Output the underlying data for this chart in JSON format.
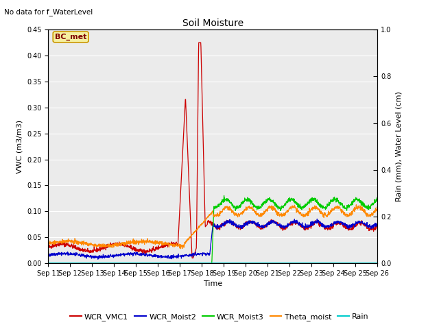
{
  "title": "Soil Moisture",
  "top_left_text": "No data for f_WaterLevel",
  "ylabel_left": "VWC (m3/m3)",
  "ylabel_right": "Rain (mm), Water Level (cm)",
  "xlabel": "Time",
  "ylim_left": [
    0.0,
    0.45
  ],
  "ylim_right": [
    0.0,
    1.0
  ],
  "background_color": "#ebebeb",
  "x_ticks": [
    "Sep 11",
    "Sep 12",
    "Sep 13",
    "Sep 14",
    "Sep 15",
    "Sep 16",
    "Sep 17",
    "Sep 18",
    "Sep 19",
    "Sep 20",
    "Sep 21",
    "Sep 22",
    "Sep 23",
    "Sep 24",
    "Sep 25",
    "Sep 26"
  ],
  "legend_labels": [
    "WCR_VMC1",
    "WCR_Moist2",
    "WCR_Moist3",
    "Theta_moist",
    "Rain"
  ],
  "legend_colors": [
    "#cc0000",
    "#0000cc",
    "#00cc00",
    "#ff8800",
    "#00cccc"
  ],
  "bc_met_box_facecolor": "#f5f0a0",
  "bc_met_box_edgecolor": "#cc9900",
  "bc_met_text_color": "#800000",
  "title_fontsize": 10,
  "tick_fontsize": 7,
  "label_fontsize": 8,
  "legend_fontsize": 8
}
